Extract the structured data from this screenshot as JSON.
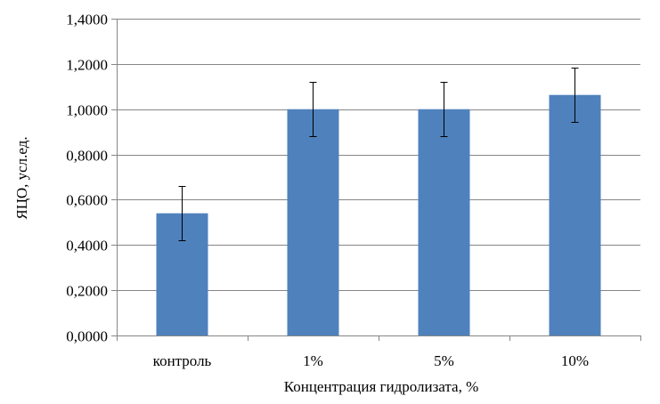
{
  "chart_data": {
    "type": "bar",
    "categories": [
      "контроль",
      "1%",
      "5%",
      "10%"
    ],
    "values": [
      0.54,
      1.0,
      1.0,
      1.063
    ],
    "error": [
      0.12,
      0.12,
      0.12,
      0.12
    ],
    "xlabel": "Концентрация гидролизата, %",
    "ylabel": "ЯЦО, усл.ед.",
    "ylim": [
      0,
      1.4
    ],
    "yticks": [
      0,
      0.2,
      0.4,
      0.6,
      0.8,
      1.0,
      1.2,
      1.4
    ],
    "ytick_labels": [
      "0,0000",
      "0,2000",
      "0,4000",
      "0,6000",
      "0,8000",
      "1,0000",
      "1,2000",
      "1,4000"
    ],
    "grid": "horizontal",
    "bar_color": "#4F81BD",
    "grid_color": "#868686",
    "axis_color": "#868686"
  }
}
